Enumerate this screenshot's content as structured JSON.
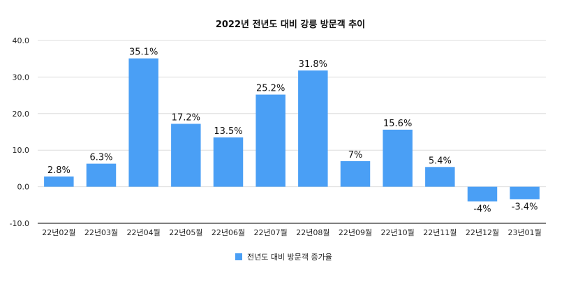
{
  "chart_data": {
    "type": "bar",
    "title": "2022년 전년도 대비 강릉 방문객 추이",
    "xlabel": "",
    "ylabel": "",
    "categories": [
      "22년02월",
      "22년03월",
      "22년04월",
      "22년05월",
      "22년06월",
      "22년07월",
      "22년08월",
      "22년09월",
      "22년10월",
      "22년11월",
      "22년12월",
      "23년01월"
    ],
    "series": [
      {
        "name": "전년도 대비 방문객 증가율",
        "values": [
          2.8,
          6.3,
          35.1,
          17.2,
          13.5,
          25.2,
          31.8,
          7,
          15.6,
          5.4,
          -4,
          -3.4
        ],
        "labels": [
          "2.8%",
          "6.3%",
          "35.1%",
          "17.2%",
          "13.5%",
          "25.2%",
          "31.8%",
          "7%",
          "15.6%",
          "5.4%",
          "-4%",
          "-3.4%"
        ]
      }
    ],
    "ylim": [
      -10,
      40
    ],
    "yticks": [
      "-10.0",
      "0.0",
      "10.0",
      "20.0",
      "30.0",
      "40.0"
    ],
    "grid": true,
    "legend": "bottom",
    "colors": {
      "bar": "#4a9ff5",
      "grid": "#dddddd",
      "axis": "#333333"
    }
  }
}
